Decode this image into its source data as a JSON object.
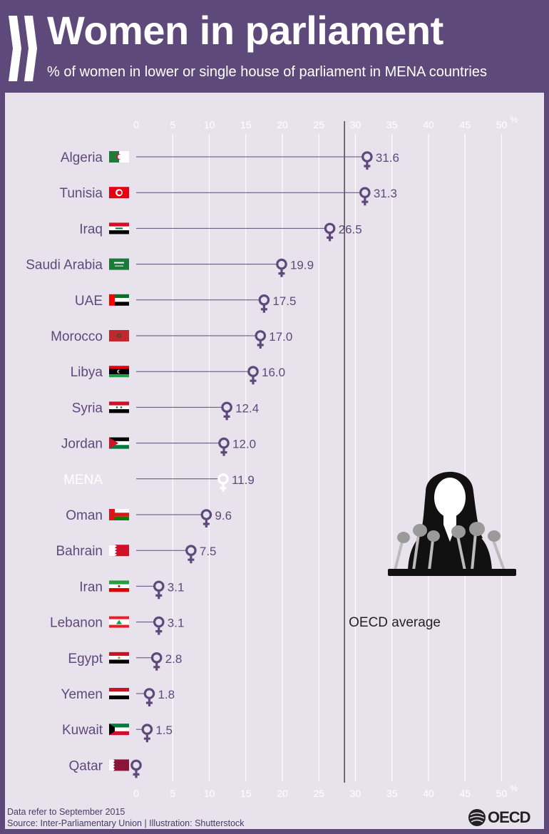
{
  "header": {
    "title": "Women in parliament",
    "subtitle": "% of women in lower or single house of parliament in MENA countries"
  },
  "colors": {
    "background": "#5e4a7a",
    "panel": "#e8e2ed",
    "accent": "#5e4a7a",
    "text": "#5e4a7a",
    "mena_marker": "#ffffff"
  },
  "chart_data": {
    "type": "scatter",
    "style": "lollipop",
    "title": "Women in parliament",
    "subtitle": "% of women in lower or single house of parliament in MENA countries",
    "xlabel": "%",
    "xlim": [
      0,
      50
    ],
    "xticks": [
      0,
      5,
      10,
      15,
      20,
      25,
      30,
      35,
      40,
      45,
      50
    ],
    "grid": true,
    "marker_icon": "female-symbol-icon",
    "categories": [
      "Algeria",
      "Tunisia",
      "Iraq",
      "Saudi Arabia",
      "UAE",
      "Morocco",
      "Libya",
      "Syria",
      "Jordan",
      "MENA",
      "Oman",
      "Bahrain",
      "Iran",
      "Lebanon",
      "Egypt",
      "Yemen",
      "Kuwait",
      "Qatar"
    ],
    "values": [
      31.6,
      31.3,
      26.5,
      19.9,
      17.5,
      17.0,
      16.0,
      12.4,
      12.0,
      11.9,
      9.6,
      7.5,
      3.1,
      3.1,
      2.8,
      1.8,
      1.5,
      0
    ],
    "value_labels": [
      "31.6",
      "31.3",
      "26.5",
      "19.9",
      "17.5",
      "17.0",
      "16.0",
      "12.4",
      "12.0",
      "11.9",
      "9.6",
      "7.5",
      "3.1",
      "3.1",
      "2.8",
      "1.8",
      "1.5",
      ""
    ],
    "highlight": "MENA",
    "reference_line": {
      "label": "OECD average",
      "value": 28.5
    }
  },
  "flags": [
    "algeria-flag-icon",
    "tunisia-flag-icon",
    "iraq-flag-icon",
    "saudi-arabia-flag-icon",
    "uae-flag-icon",
    "morocco-flag-icon",
    "libya-flag-icon",
    "syria-flag-icon",
    "jordan-flag-icon",
    "",
    "oman-flag-icon",
    "bahrain-flag-icon",
    "iran-flag-icon",
    "lebanon-flag-icon",
    "egypt-flag-icon",
    "yemen-flag-icon",
    "kuwait-flag-icon",
    "qatar-flag-icon"
  ],
  "illustration": "woman-speaker-at-podium-icon",
  "footer": {
    "note": "Data refer to September 2015",
    "source": "Source: Inter-Parliamentary Union | Illustration: Shutterstock"
  },
  "logo": {
    "text": "OECD"
  }
}
